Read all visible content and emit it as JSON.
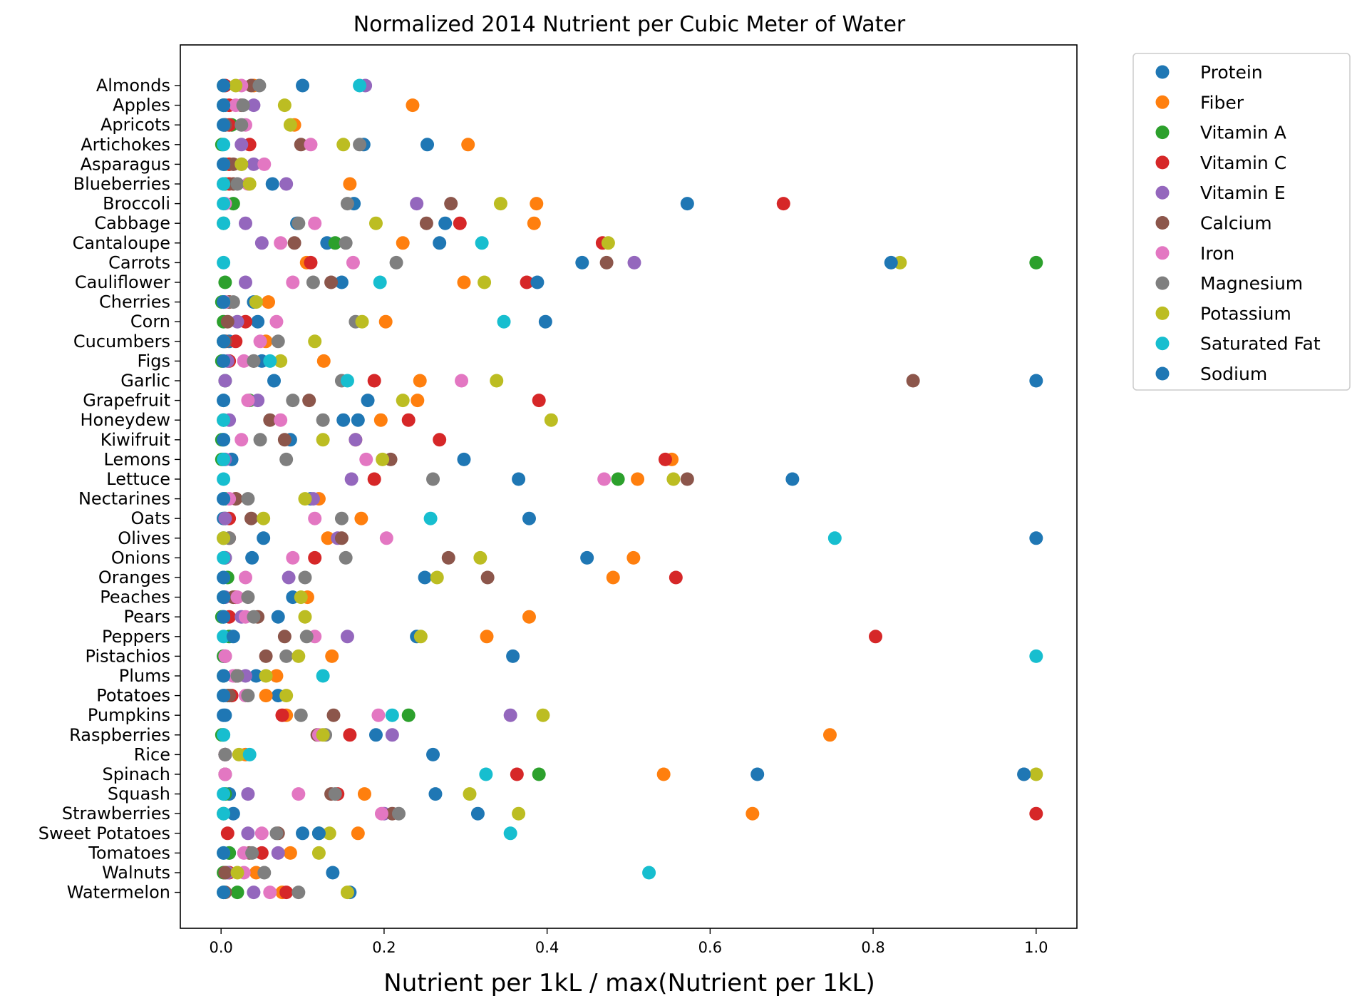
{
  "chart_data": {
    "type": "scatter",
    "title": "Normalized 2014 Nutrient per Cubic Meter of Water",
    "xlabel": "Nutrient per 1kL / max(Nutrient per 1kL)",
    "ylabel": "",
    "xlim": [
      -0.05,
      1.05
    ],
    "xticks": [
      0.0,
      0.2,
      0.4,
      0.6,
      0.8,
      1.0
    ],
    "xtick_labels": [
      "0.0",
      "0.2",
      "0.4",
      "0.6",
      "0.8",
      "1.0"
    ],
    "grid": false,
    "legend_position": "outside-top-right",
    "categories": [
      "Almonds",
      "Apples",
      "Apricots",
      "Artichokes",
      "Asparagus",
      "Blueberries",
      "Broccoli",
      "Cabbage",
      "Cantaloupe",
      "Carrots",
      "Cauliflower",
      "Cherries",
      "Corn",
      "Cucumbers",
      "Figs",
      "Garlic",
      "Grapefruit",
      "Honeydew",
      "Kiwifruit",
      "Lemons",
      "Lettuce",
      "Nectarines",
      "Oats",
      "Olives",
      "Onions",
      "Oranges",
      "Peaches",
      "Pears",
      "Peppers",
      "Pistachios",
      "Plums",
      "Potatoes",
      "Pumpkins",
      "Raspberries",
      "Rice",
      "Spinach",
      "Squash",
      "Strawberries",
      "Sweet Potatoes",
      "Tomatoes",
      "Walnuts",
      "Watermelon"
    ],
    "series": [
      {
        "name": "Protein",
        "color": "#1f77b4",
        "values": [
          0.1,
          0.005,
          0.005,
          0.175,
          0.003,
          0.003,
          0.163,
          0.093,
          0.13,
          0.443,
          0.148,
          0.04,
          0.045,
          0.01,
          0.05,
          0.065,
          0.18,
          0.15,
          0.085,
          0.013,
          0.365,
          0.11,
          0.003,
          0.052,
          0.038,
          0.25,
          0.088,
          0.07,
          0.24,
          0.003,
          0.043,
          0.07,
          0.005,
          0.003,
          0.005,
          0.658,
          0.01,
          0.015,
          0.1,
          0.01,
          0.005,
          0.158
        ]
      },
      {
        "name": "Fiber",
        "color": "#ff7f0e",
        "values": [
          0.04,
          0.235,
          0.09,
          0.303,
          0.01,
          0.158,
          0.387,
          0.384,
          0.223,
          0.105,
          0.298,
          0.058,
          0.202,
          0.055,
          0.126,
          0.244,
          0.241,
          0.196,
          0.165,
          0.553,
          0.511,
          0.12,
          0.172,
          0.131,
          0.506,
          0.481,
          0.106,
          0.378,
          0.326,
          0.136,
          0.068,
          0.055,
          0.08,
          0.747,
          0.03,
          0.543,
          0.176,
          0.652,
          0.168,
          0.085,
          0.043,
          0.075
        ]
      },
      {
        "name": "Vitamin A",
        "color": "#2ca02c",
        "values": [
          0.003,
          0.003,
          0.013,
          0.001,
          0.005,
          0.005,
          0.015,
          0.003,
          0.14,
          1.0,
          0.005,
          0.001,
          0.003,
          0.003,
          0.001,
          0.005,
          0.035,
          0.003,
          0.001,
          0.001,
          0.487,
          0.005,
          0.005,
          0.003,
          0.005,
          0.008,
          0.003,
          0.001,
          0.01,
          0.003,
          0.003,
          0.008,
          0.23,
          0.001,
          0.005,
          0.39,
          0.005,
          0.003,
          0.12,
          0.01,
          0.003,
          0.02
        ]
      },
      {
        "name": "Vitamin C",
        "color": "#d62728",
        "values": [
          0.005,
          0.01,
          0.01,
          0.035,
          0.01,
          0.01,
          0.69,
          0.293,
          0.468,
          0.11,
          0.375,
          0.01,
          0.03,
          0.018,
          0.01,
          0.188,
          0.39,
          0.23,
          0.268,
          0.545,
          0.188,
          0.018,
          0.01,
          0.01,
          0.115,
          0.558,
          0.018,
          0.01,
          0.803,
          0.005,
          0.02,
          0.013,
          0.075,
          0.158,
          0.005,
          0.363,
          0.143,
          1.0,
          0.008,
          0.05,
          0.01,
          0.08
        ]
      },
      {
        "name": "Vitamin E",
        "color": "#9467bd",
        "values": [
          0.177,
          0.04,
          0.005,
          0.025,
          0.04,
          0.08,
          0.24,
          0.03,
          0.05,
          0.507,
          0.03,
          0.005,
          0.02,
          0.005,
          0.008,
          0.005,
          0.045,
          0.01,
          0.165,
          0.005,
          0.16,
          0.113,
          0.005,
          0.143,
          0.005,
          0.083,
          0.005,
          0.025,
          0.155,
          0.005,
          0.03,
          0.005,
          0.355,
          0.21,
          0.005,
          0.005,
          0.033,
          0.2,
          0.033,
          0.07,
          0.008,
          0.04
        ]
      },
      {
        "name": "Calcium",
        "color": "#8c564b",
        "values": [
          0.037,
          0.025,
          0.005,
          0.098,
          0.015,
          0.015,
          0.282,
          0.252,
          0.09,
          0.473,
          0.135,
          0.01,
          0.008,
          0.005,
          0.04,
          0.849,
          0.108,
          0.06,
          0.078,
          0.208,
          0.572,
          0.018,
          0.037,
          0.148,
          0.279,
          0.327,
          0.015,
          0.045,
          0.078,
          0.055,
          0.018,
          0.01,
          0.138,
          0.118,
          0.005,
          0.005,
          0.135,
          0.21,
          0.07,
          0.035,
          0.005,
          0.005
        ]
      },
      {
        "name": "Iron",
        "color": "#e377c2",
        "values": [
          0.025,
          0.018,
          0.03,
          0.11,
          0.053,
          0.033,
          0.005,
          0.115,
          0.073,
          0.162,
          0.088,
          0.005,
          0.068,
          0.048,
          0.028,
          0.295,
          0.033,
          0.073,
          0.025,
          0.178,
          0.47,
          0.01,
          0.115,
          0.203,
          0.088,
          0.03,
          0.02,
          0.03,
          0.115,
          0.005,
          0.015,
          0.03,
          0.193,
          0.12,
          0.005,
          0.005,
          0.095,
          0.197,
          0.05,
          0.028,
          0.028,
          0.06
        ]
      },
      {
        "name": "Magnesium",
        "color": "#7f7f7f",
        "values": [
          0.047,
          0.027,
          0.025,
          0.17,
          0.025,
          0.02,
          0.155,
          0.095,
          0.153,
          0.215,
          0.113,
          0.015,
          0.165,
          0.07,
          0.04,
          0.148,
          0.088,
          0.125,
          0.048,
          0.08,
          0.26,
          0.033,
          0.148,
          0.01,
          0.153,
          0.103,
          0.033,
          0.04,
          0.105,
          0.08,
          0.02,
          0.033,
          0.098,
          0.128,
          0.005,
          0.985,
          0.14,
          0.218,
          0.068,
          0.038,
          0.053,
          0.095
        ]
      },
      {
        "name": "Potassium",
        "color": "#bcbd22",
        "values": [
          0.018,
          0.078,
          0.085,
          0.15,
          0.025,
          0.035,
          0.343,
          0.19,
          0.475,
          0.833,
          0.323,
          0.043,
          0.173,
          0.115,
          0.073,
          0.338,
          0.223,
          0.405,
          0.125,
          0.198,
          0.555,
          0.103,
          0.052,
          0.003,
          0.318,
          0.265,
          0.098,
          0.103,
          0.245,
          0.095,
          0.055,
          0.08,
          0.395,
          0.125,
          0.022,
          1.0,
          0.305,
          0.365,
          0.133,
          0.12,
          0.02,
          0.155
        ]
      },
      {
        "name": "Saturated Fat",
        "color": "#17becf",
        "values": [
          0.17,
          0.003,
          0.003,
          0.003,
          0.003,
          0.003,
          0.003,
          0.003,
          0.32,
          0.003,
          0.195,
          0.003,
          0.347,
          0.003,
          0.06,
          0.155,
          0.003,
          0.003,
          0.003,
          0.003,
          0.003,
          0.003,
          0.257,
          0.753,
          0.003,
          0.003,
          0.003,
          0.003,
          0.003,
          1.0,
          0.125,
          0.003,
          0.21,
          0.003,
          0.035,
          0.325,
          0.003,
          0.003,
          0.355,
          0.003,
          0.525,
          0.003
        ]
      },
      {
        "name": "Sodium",
        "color": "#1f77b4",
        "values": [
          0.003,
          0.003,
          0.003,
          0.253,
          0.003,
          0.063,
          0.572,
          0.275,
          0.268,
          0.822,
          0.388,
          0.003,
          0.398,
          0.003,
          0.003,
          1.0,
          0.003,
          0.168,
          0.003,
          0.298,
          0.701,
          0.003,
          0.378,
          1.0,
          0.449,
          0.003,
          0.003,
          0.003,
          0.015,
          0.358,
          0.003,
          0.003,
          0.003,
          0.19,
          0.26,
          0.985,
          0.263,
          0.315,
          0.12,
          0.003,
          0.137,
          0.003
        ]
      }
    ]
  }
}
